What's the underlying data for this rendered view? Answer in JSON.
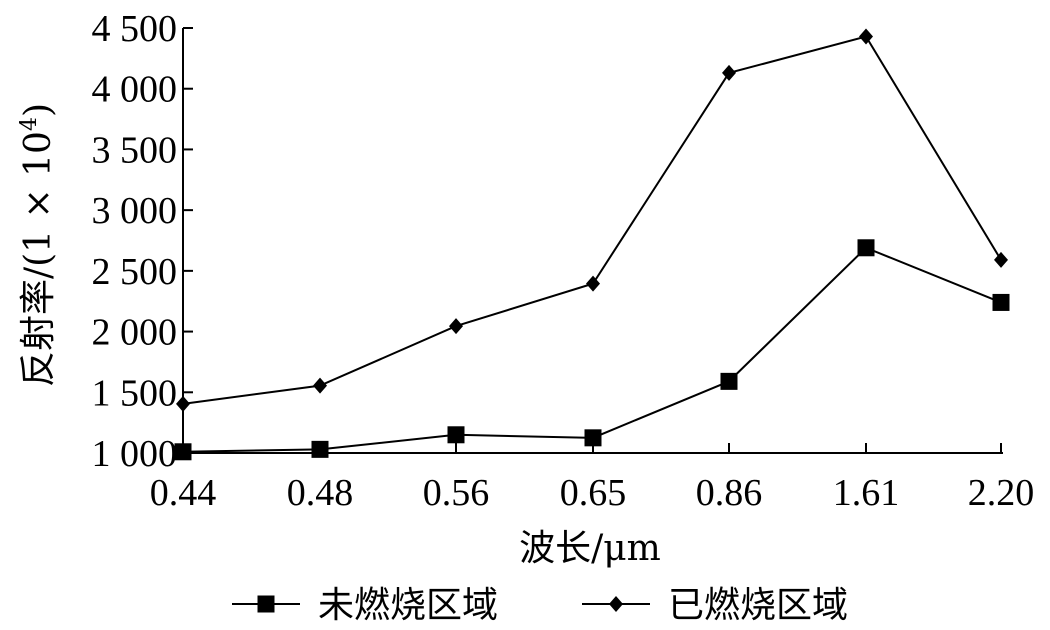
{
  "chart_data": {
    "type": "line",
    "categories": [
      "0.44",
      "0.48",
      "0.56",
      "0.65",
      "0.86",
      "1.61",
      "2.20"
    ],
    "series": [
      {
        "name": "未燃烧区域",
        "marker": "square",
        "values": [
          1010,
          1030,
          1150,
          1125,
          1590,
          2690,
          2240
        ]
      },
      {
        "name": "已燃烧区域",
        "marker": "diamond",
        "values": [
          1405,
          1555,
          2045,
          2395,
          4130,
          4430,
          2590
        ]
      }
    ],
    "ylim": [
      1000,
      4500
    ],
    "yticks": [
      {
        "value": 1000,
        "label": "1 000"
      },
      {
        "value": 1500,
        "label": "1 500"
      },
      {
        "value": 2000,
        "label": "2 000"
      },
      {
        "value": 2500,
        "label": "2 500"
      },
      {
        "value": 3000,
        "label": "3 000"
      },
      {
        "value": 3500,
        "label": "3 500"
      },
      {
        "value": 4000,
        "label": "4 000"
      },
      {
        "value": 4500,
        "label": "4 500"
      }
    ],
    "xlabel": "波长/μm",
    "ylabel_main": "反射率/(1 × 10",
    "ylabel_sup": "4",
    "ylabel_end": ")",
    "grid": false,
    "legend_position": "bottom",
    "colors": {
      "line": "#000000",
      "axis": "#000000"
    }
  }
}
